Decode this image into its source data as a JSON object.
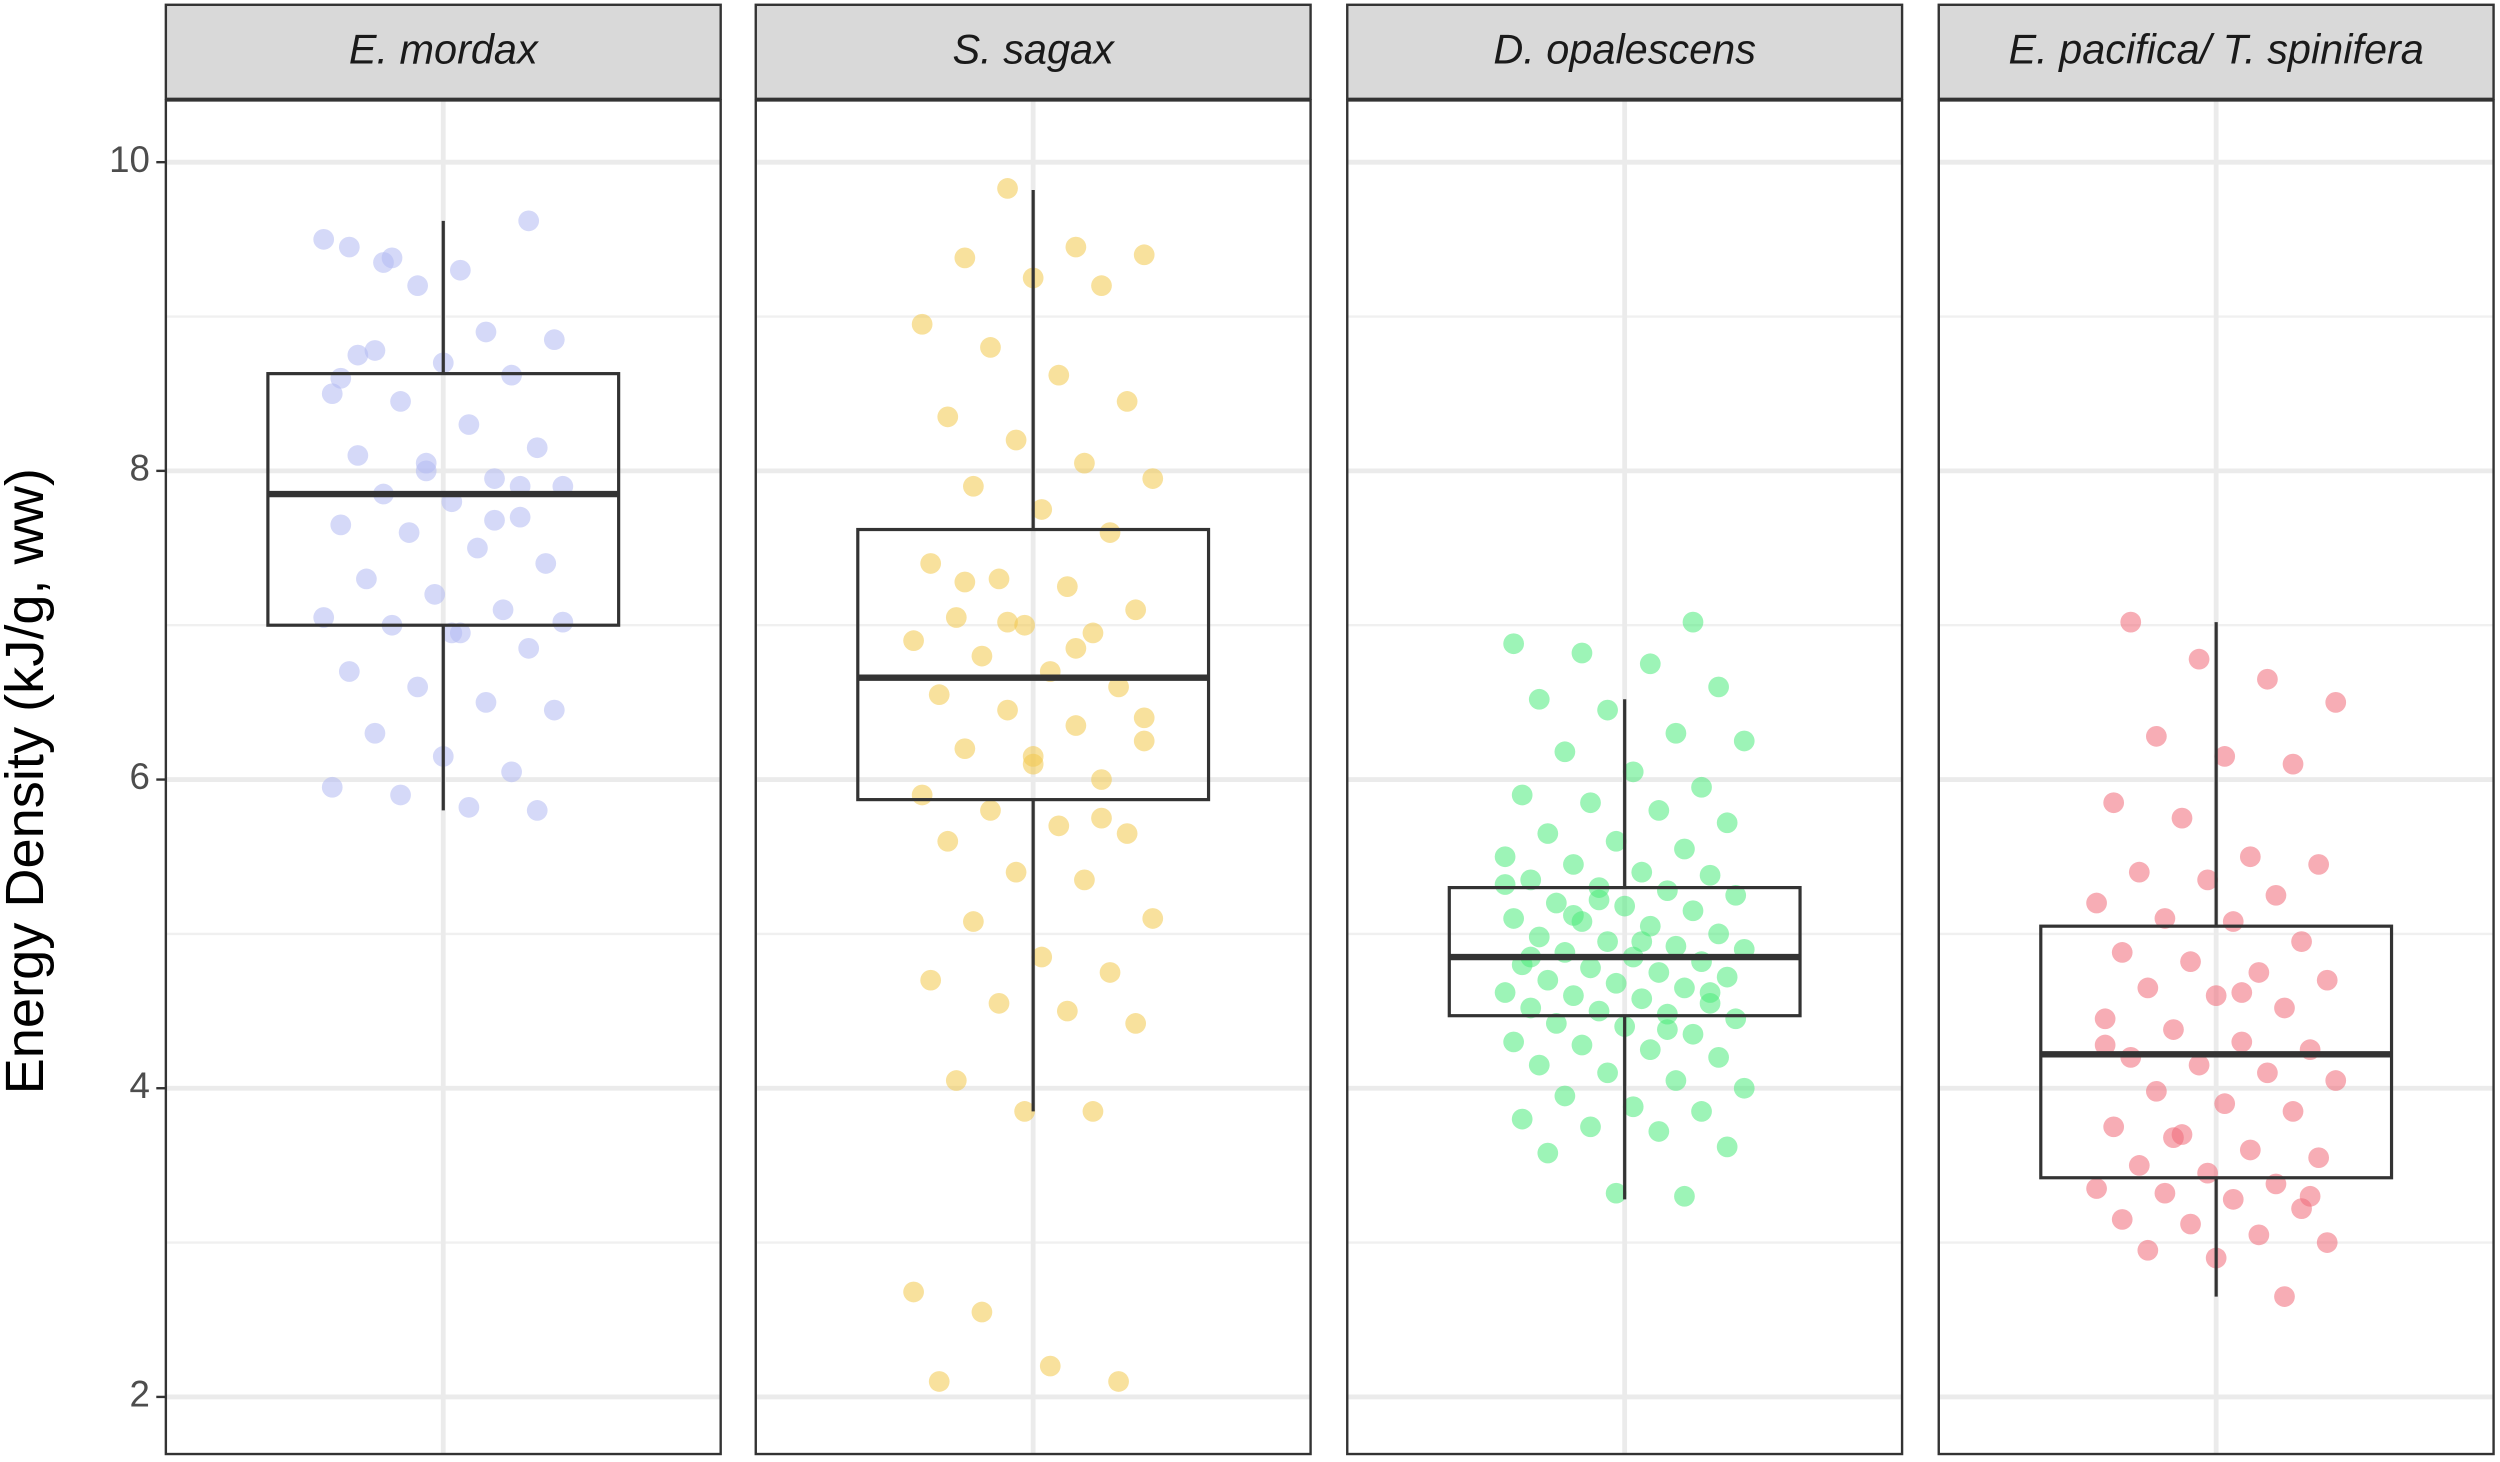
{
  "chart_data": {
    "type": "box",
    "y_label": "Energy Density (kJ/g, ww)",
    "ylim": [
      1.63,
      10.4
    ],
    "yticks": [
      2,
      4,
      6,
      8,
      10
    ],
    "y_minor_ticks": [
      3,
      5,
      7,
      9
    ],
    "grid": true,
    "series": [
      {
        "name": "E. mordax",
        "color": "#b3b9f2",
        "whisker_low": 5.8,
        "q1": 7.0,
        "median": 7.85,
        "q3": 8.63,
        "whisker_high": 9.62,
        "points": [
          9.5,
          9.38,
          9.3,
          9.62,
          9.45,
          9.2,
          8.9,
          8.85,
          8.78,
          8.7,
          8.62,
          8.5,
          8.45,
          8.3,
          8.15,
          8.1,
          8.0,
          7.95,
          7.9,
          7.85,
          7.8,
          7.7,
          7.65,
          7.6,
          7.5,
          7.4,
          7.3,
          7.2,
          7.1,
          7.05,
          7.0,
          6.95,
          6.85,
          6.7,
          6.6,
          6.5,
          6.45,
          6.3,
          6.15,
          6.05,
          5.95,
          5.9,
          5.82,
          5.8,
          8.75,
          8.05,
          7.68,
          7.02,
          9.35,
          6.95,
          7.9,
          8.6
        ]
      },
      {
        "name": "S. sagax",
        "color": "#f2c94c",
        "whisker_low": 3.85,
        "q1": 5.87,
        "median": 6.66,
        "q3": 7.62,
        "whisker_high": 9.82,
        "points": [
          9.83,
          9.45,
          9.4,
          9.38,
          9.25,
          9.2,
          8.95,
          8.8,
          8.62,
          8.45,
          8.35,
          8.2,
          8.05,
          7.95,
          7.9,
          7.75,
          7.6,
          7.4,
          7.3,
          7.25,
          7.1,
          7.05,
          7.0,
          6.95,
          6.9,
          6.8,
          6.7,
          6.6,
          6.55,
          6.45,
          6.35,
          6.25,
          6.2,
          6.1,
          6.0,
          5.9,
          5.8,
          5.7,
          5.65,
          5.6,
          5.4,
          5.35,
          5.1,
          5.08,
          4.85,
          4.75,
          4.7,
          4.55,
          4.5,
          4.42,
          4.05,
          3.85,
          3.85,
          2.68,
          2.55,
          2.2,
          2.1,
          2.1,
          7.02,
          6.85,
          6.4,
          7.28,
          6.15,
          5.75
        ]
      },
      {
        "name": "D. opalescens",
        "color": "#4deb7c",
        "whisker_low": 3.28,
        "q1": 4.47,
        "median": 4.85,
        "q3": 5.3,
        "whisker_high": 6.52,
        "points": [
          7.02,
          6.88,
          6.82,
          6.75,
          6.6,
          6.52,
          6.45,
          6.3,
          6.25,
          6.18,
          6.05,
          5.95,
          5.9,
          5.85,
          5.8,
          5.72,
          5.65,
          5.6,
          5.55,
          5.5,
          5.45,
          5.4,
          5.38,
          5.35,
          5.3,
          5.28,
          5.25,
          5.2,
          5.18,
          5.15,
          5.1,
          5.08,
          5.05,
          5.0,
          4.98,
          4.95,
          4.92,
          4.9,
          4.88,
          4.85,
          4.82,
          4.8,
          4.78,
          4.75,
          4.72,
          4.7,
          4.68,
          4.65,
          4.62,
          4.6,
          4.58,
          4.55,
          4.52,
          4.5,
          4.48,
          4.45,
          4.42,
          4.4,
          4.35,
          4.3,
          4.28,
          4.25,
          4.2,
          4.15,
          4.1,
          4.05,
          4.0,
          3.95,
          3.88,
          3.85,
          3.8,
          3.75,
          3.72,
          3.62,
          3.58,
          3.32,
          3.3,
          5.32,
          5.12,
          4.95,
          4.62,
          4.85,
          5.22,
          4.38
        ]
      },
      {
        "name": "E. pacifica/ T. spinifera",
        "color": "#f06a78",
        "whisker_low": 2.65,
        "q1": 3.42,
        "median": 4.22,
        "q3": 5.05,
        "whisker_high": 7.02,
        "points": [
          7.02,
          6.78,
          6.65,
          6.5,
          6.28,
          6.15,
          6.1,
          5.85,
          5.75,
          5.5,
          5.45,
          5.4,
          5.35,
          5.25,
          5.2,
          5.1,
          5.08,
          4.95,
          4.88,
          4.82,
          4.75,
          4.7,
          4.65,
          4.6,
          4.52,
          4.45,
          4.38,
          4.3,
          4.25,
          4.2,
          4.15,
          4.1,
          4.05,
          3.98,
          3.9,
          3.85,
          3.75,
          3.7,
          3.6,
          3.55,
          3.5,
          3.45,
          3.38,
          3.35,
          3.32,
          3.28,
          3.22,
          3.15,
          3.12,
          3.05,
          3.0,
          2.95,
          2.9,
          2.65,
          4.28,
          3.68,
          4.62,
          3.3
        ]
      }
    ]
  }
}
